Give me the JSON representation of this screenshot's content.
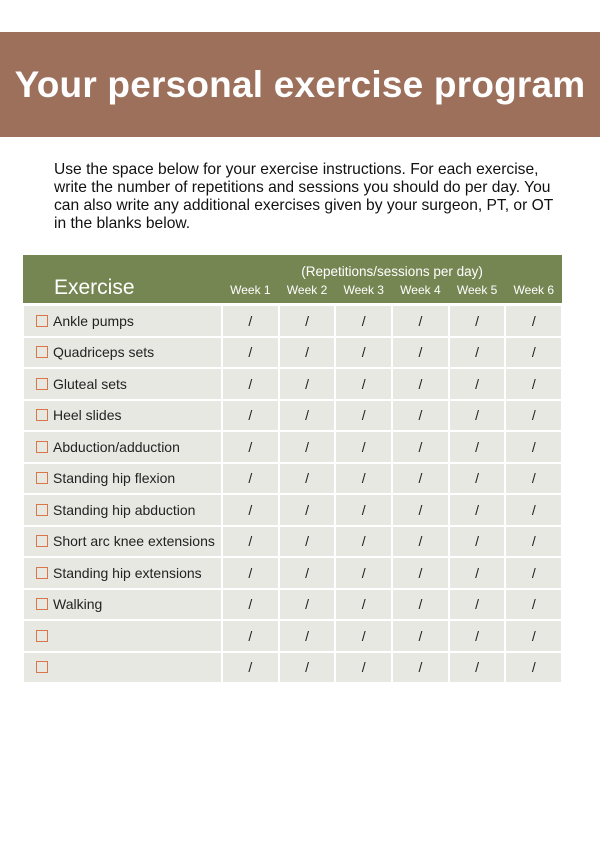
{
  "title": "Your personal exercise program",
  "intro": "Use the space below for your exercise instructions. For each exercise, write the number of repetitions and sessions you should do per day. You can also write any additional exercises given by your surgeon, PT, or OT in the blanks below.",
  "table": {
    "exercise_header": "Exercise",
    "subheader": "(Repetitions/sessions per day)",
    "weeks": [
      "Week 1",
      "Week 2",
      "Week 3",
      "Week 4",
      "Week 5",
      "Week 6"
    ],
    "cell_value": "/",
    "rows": [
      "Ankle pumps",
      "Quadriceps sets",
      "Gluteal sets",
      "Heel slides",
      "Abduction/adduction",
      "Standing hip flexion",
      "Standing hip abduction",
      "Short arc knee extensions",
      "Standing hip extensions",
      "Walking",
      "",
      ""
    ]
  },
  "colors": {
    "banner": "#9c705b",
    "header": "#768653",
    "row": "#e8e8e3",
    "checkbox": "#d9774a"
  }
}
